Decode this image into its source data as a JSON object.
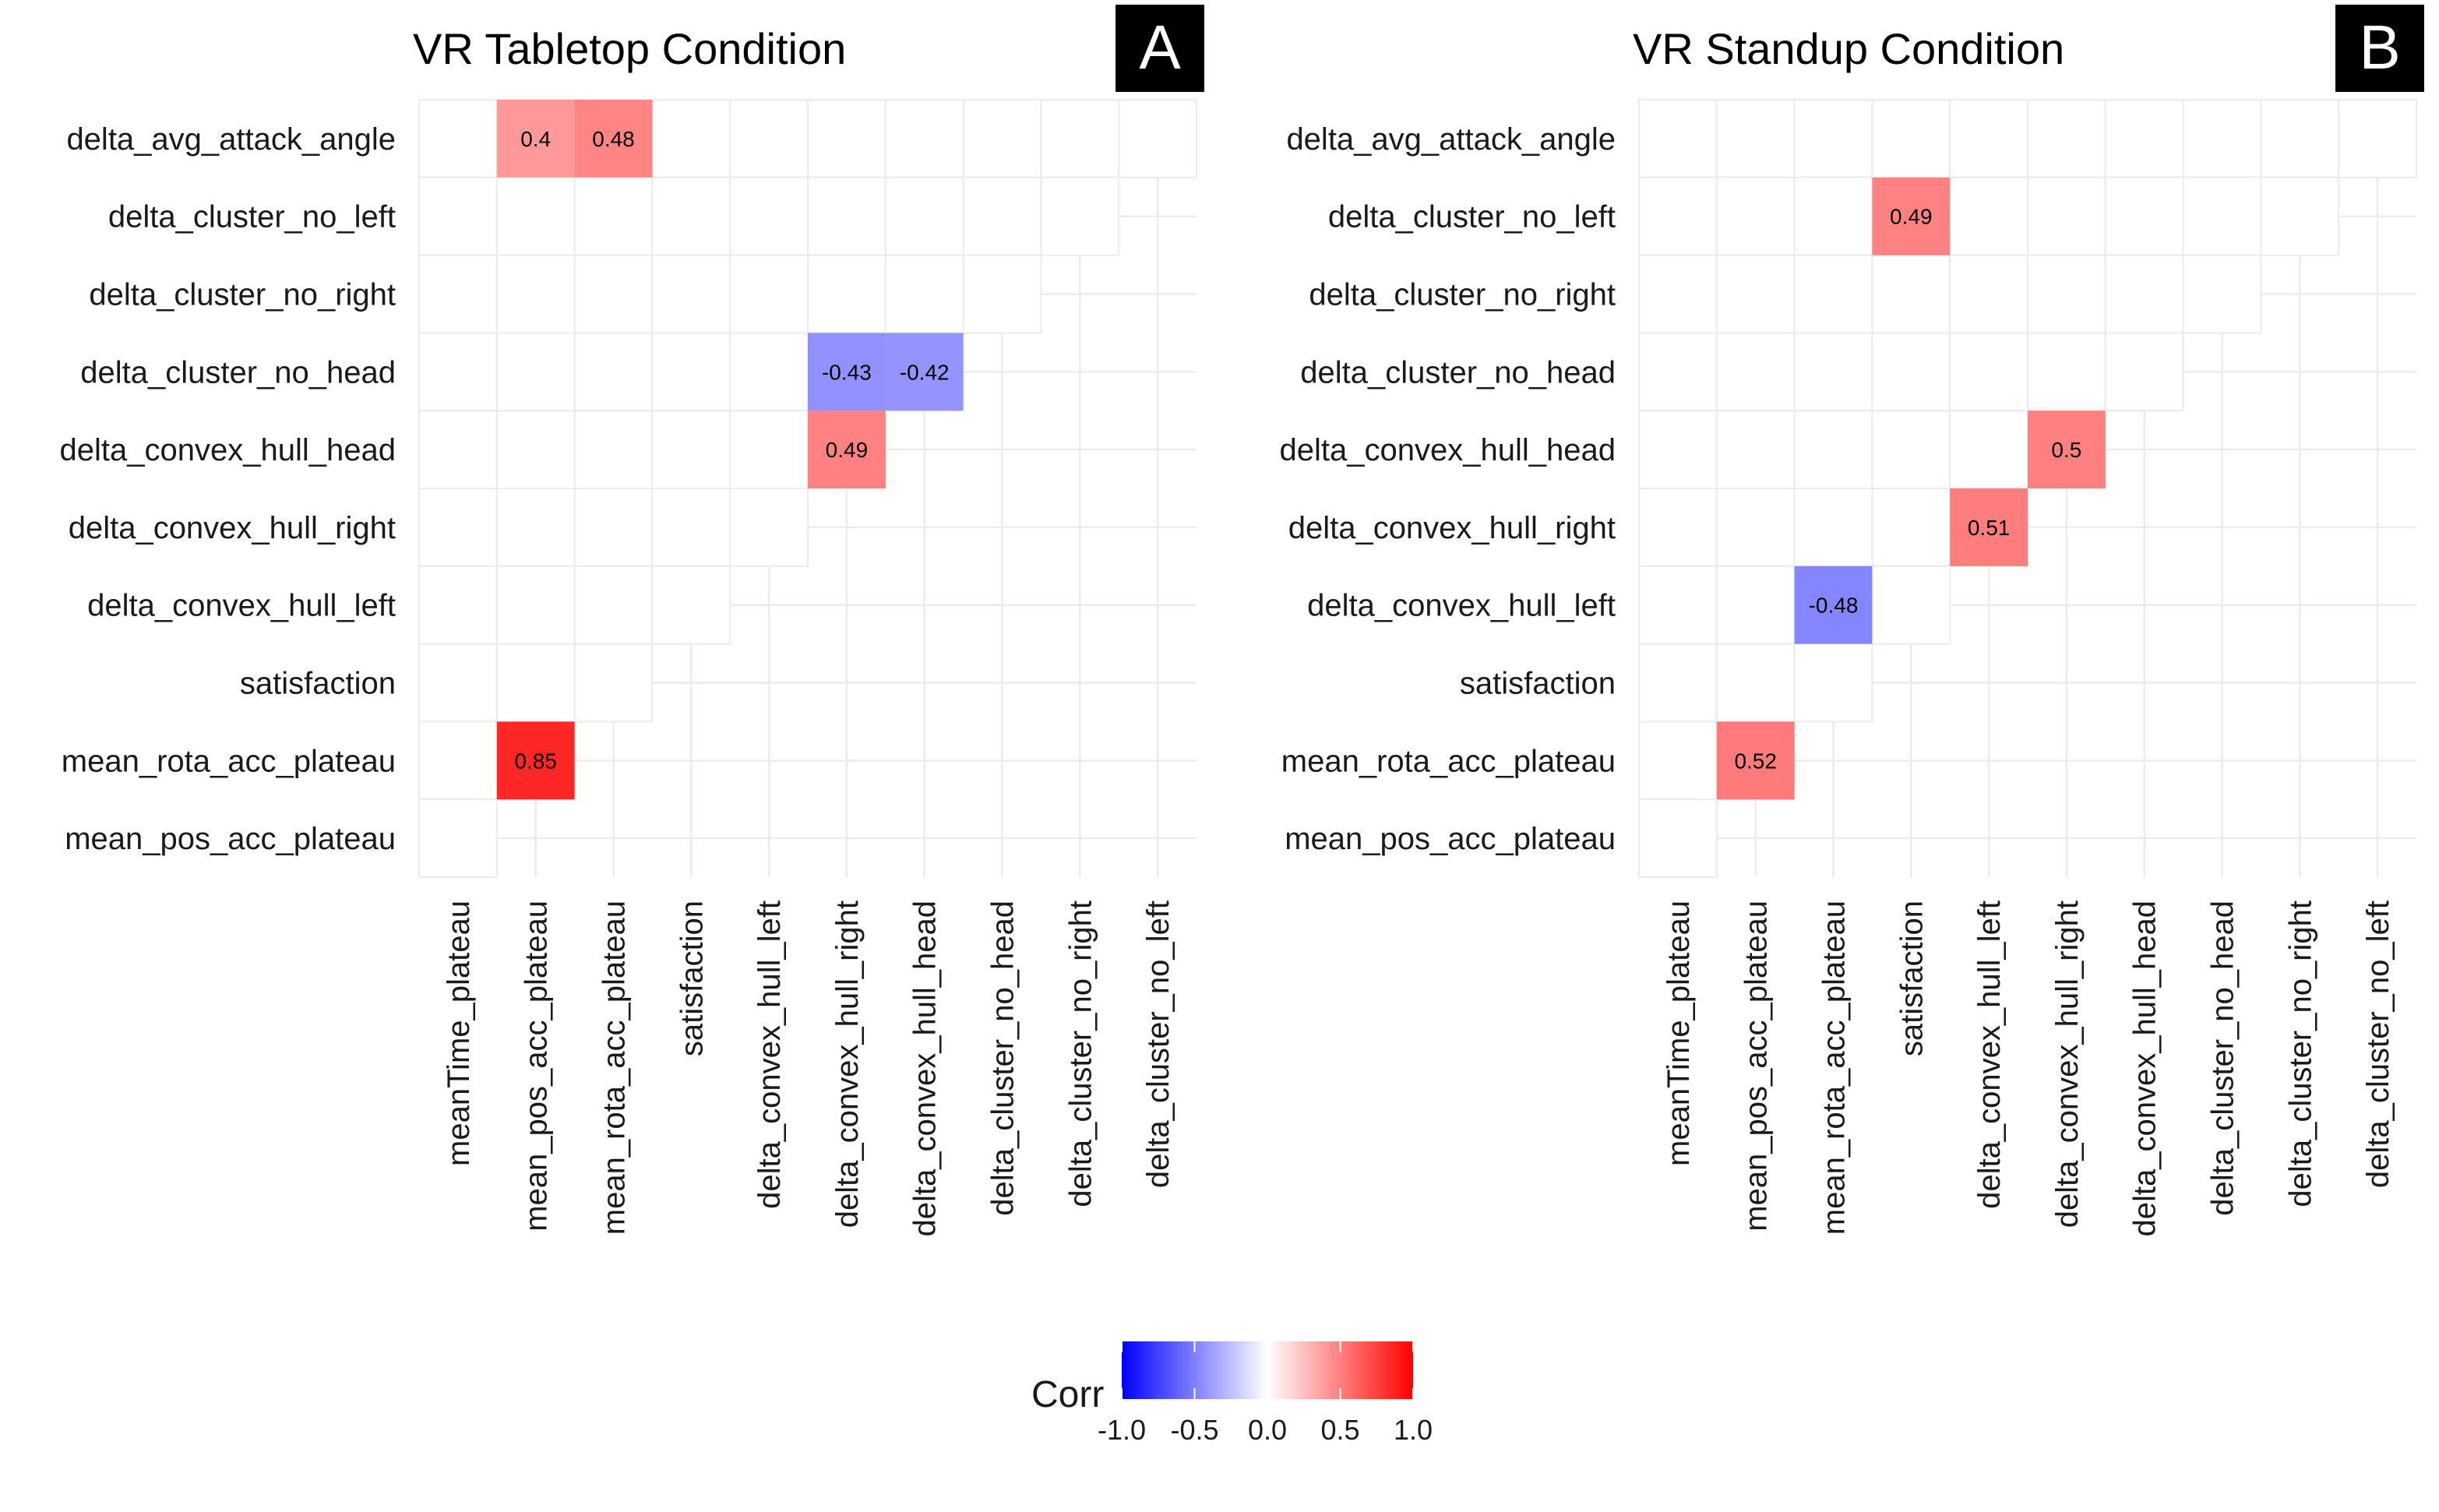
{
  "chart_data": [
    {
      "type": "heatmap",
      "title": "VR Tabletop Condition",
      "panel_label": "A",
      "rows": [
        "delta_avg_attack_angle",
        "delta_cluster_no_left",
        "delta_cluster_no_right",
        "delta_cluster_no_head",
        "delta_convex_hull_head",
        "delta_convex_hull_right",
        "delta_convex_hull_left",
        "satisfaction",
        "mean_rota_acc_plateau",
        "mean_pos_acc_plateau"
      ],
      "columns": [
        "meanTime_plateau",
        "mean_pos_acc_plateau",
        "mean_rota_acc_plateau",
        "satisfaction",
        "delta_convex_hull_left",
        "delta_convex_hull_right",
        "delta_convex_hull_head",
        "delta_cluster_no_head",
        "delta_cluster_no_right",
        "delta_cluster_no_left"
      ],
      "values": [
        {
          "row": "delta_avg_attack_angle",
          "column": "mean_pos_acc_plateau",
          "value": 0.4
        },
        {
          "row": "delta_avg_attack_angle",
          "column": "mean_rota_acc_plateau",
          "value": 0.48
        },
        {
          "row": "delta_cluster_no_head",
          "column": "delta_convex_hull_right",
          "value": -0.43
        },
        {
          "row": "delta_cluster_no_head",
          "column": "delta_convex_hull_head",
          "value": -0.42
        },
        {
          "row": "delta_convex_hull_head",
          "column": "delta_convex_hull_right",
          "value": 0.49
        },
        {
          "row": "mean_rota_acc_plateau",
          "column": "mean_pos_acc_plateau",
          "value": 0.85
        }
      ]
    },
    {
      "type": "heatmap",
      "title": "VR Standup Condition",
      "panel_label": "B",
      "rows": [
        "delta_avg_attack_angle",
        "delta_cluster_no_left",
        "delta_cluster_no_right",
        "delta_cluster_no_head",
        "delta_convex_hull_head",
        "delta_convex_hull_right",
        "delta_convex_hull_left",
        "satisfaction",
        "mean_rota_acc_plateau",
        "mean_pos_acc_plateau"
      ],
      "columns": [
        "meanTime_plateau",
        "mean_pos_acc_plateau",
        "mean_rota_acc_plateau",
        "satisfaction",
        "delta_convex_hull_left",
        "delta_convex_hull_right",
        "delta_convex_hull_head",
        "delta_cluster_no_head",
        "delta_cluster_no_right",
        "delta_cluster_no_left"
      ],
      "values": [
        {
          "row": "delta_cluster_no_left",
          "column": "satisfaction",
          "value": 0.49
        },
        {
          "row": "delta_convex_hull_head",
          "column": "delta_convex_hull_right",
          "value": 0.5
        },
        {
          "row": "delta_convex_hull_right",
          "column": "delta_convex_hull_left",
          "value": 0.51
        },
        {
          "row": "delta_convex_hull_left",
          "column": "mean_rota_acc_plateau",
          "value": -0.48
        },
        {
          "row": "mean_rota_acc_plateau",
          "column": "mean_pos_acc_plateau",
          "value": 0.52
        }
      ]
    }
  ],
  "legend": {
    "title": "Corr",
    "range": [
      -1.0,
      1.0
    ],
    "tick_values": [
      -1.0,
      -0.5,
      0.0,
      0.5,
      1.0
    ],
    "tick_labels": [
      "-1.0",
      "-0.5",
      "0.0",
      "0.5",
      "1.0"
    ],
    "colors": {
      "low": "#0000ff",
      "mid": "#ffffff",
      "high": "#ff0000"
    }
  },
  "grid": true,
  "colors": {
    "grid": "#ebebeb",
    "text": "#1a1a1a",
    "label_box": "#000000",
    "label_text": "#ffffff"
  }
}
